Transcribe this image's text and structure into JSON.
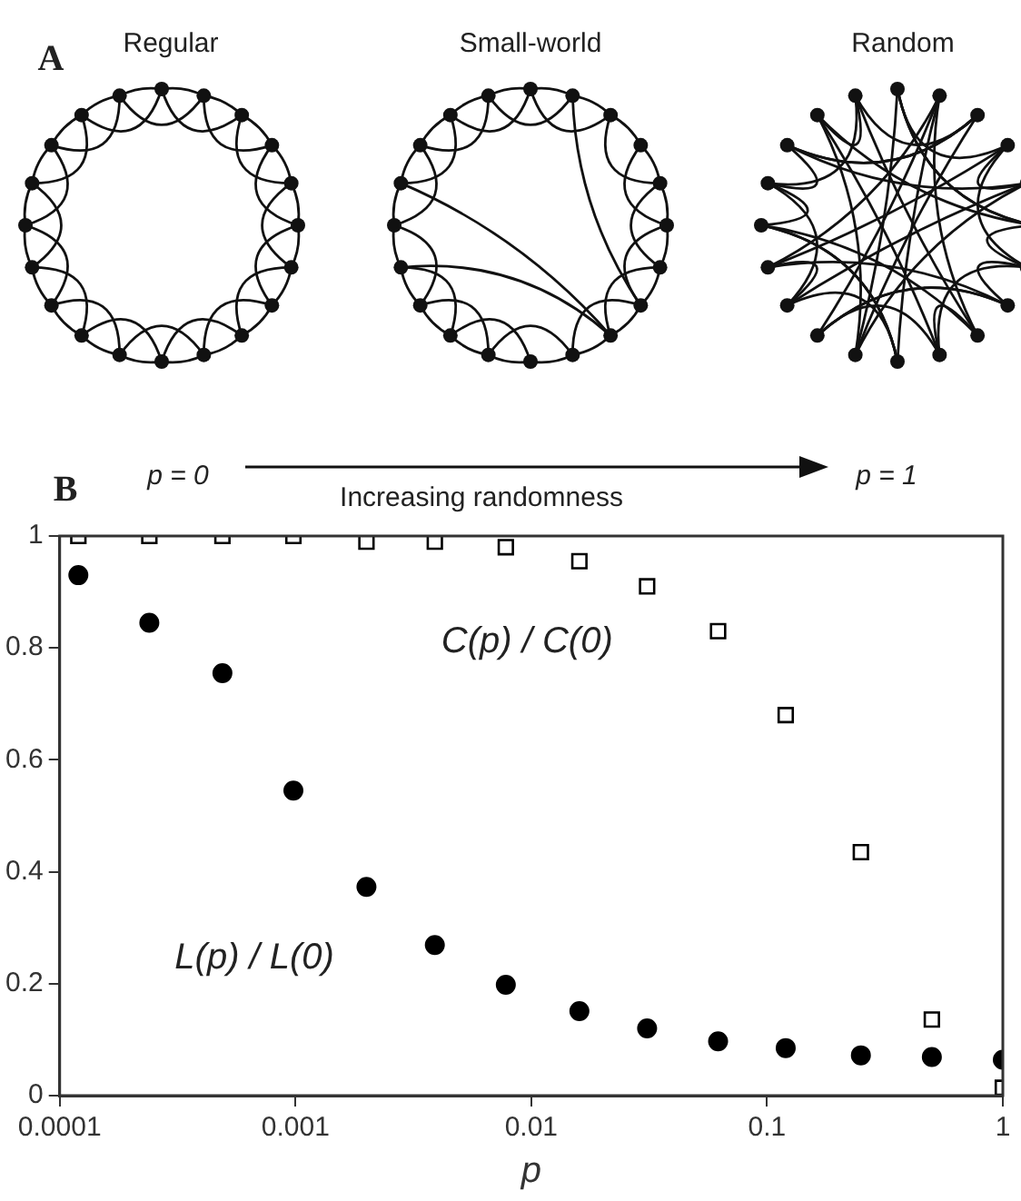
{
  "chart_data": {
    "type": "scatter",
    "xlabel": "p",
    "annotations": [
      "A",
      "Regular",
      "Small-world",
      "Random",
      "B",
      "p = 0",
      "Increasing randomness",
      "p = 1"
    ],
    "series": [
      {
        "name": "C(p) / C(0)",
        "color": "#000000",
        "marker": "square",
        "x": [
          0.00012,
          0.00024,
          0.00049,
          0.00098,
          0.002,
          0.0039,
          0.0078,
          0.016,
          0.031,
          0.062,
          0.12,
          0.25,
          0.5,
          1
        ],
        "values": [
          1,
          1,
          1,
          1,
          0.99,
          0.99,
          0.98,
          0.955,
          0.91,
          0.83,
          0.68,
          0.435,
          0.136,
          0.014
        ]
      },
      {
        "name": "L(p) / L(0)",
        "color": "#000000",
        "marker": "circle",
        "x": [
          0.00012,
          0.00024,
          0.00049,
          0.00098,
          0.002,
          0.0039,
          0.0078,
          0.016,
          0.031,
          0.062,
          0.12,
          0.25,
          0.5,
          1
        ],
        "values": [
          0.93,
          0.845,
          0.755,
          0.545,
          0.373,
          0.269,
          0.198,
          0.151,
          0.12,
          0.097,
          0.085,
          0.072,
          0.069,
          0.064
        ]
      }
    ],
    "log": "x",
    "xlim": [
      0.0001,
      1
    ],
    "xticks": [
      0.0001,
      0.001,
      0.01,
      0.1,
      1
    ],
    "ylim": [
      0,
      1
    ],
    "yticks": [
      0,
      0.2,
      0.4,
      0.6,
      0.8,
      1
    ],
    "grid": false,
    "legend": false
  }
}
